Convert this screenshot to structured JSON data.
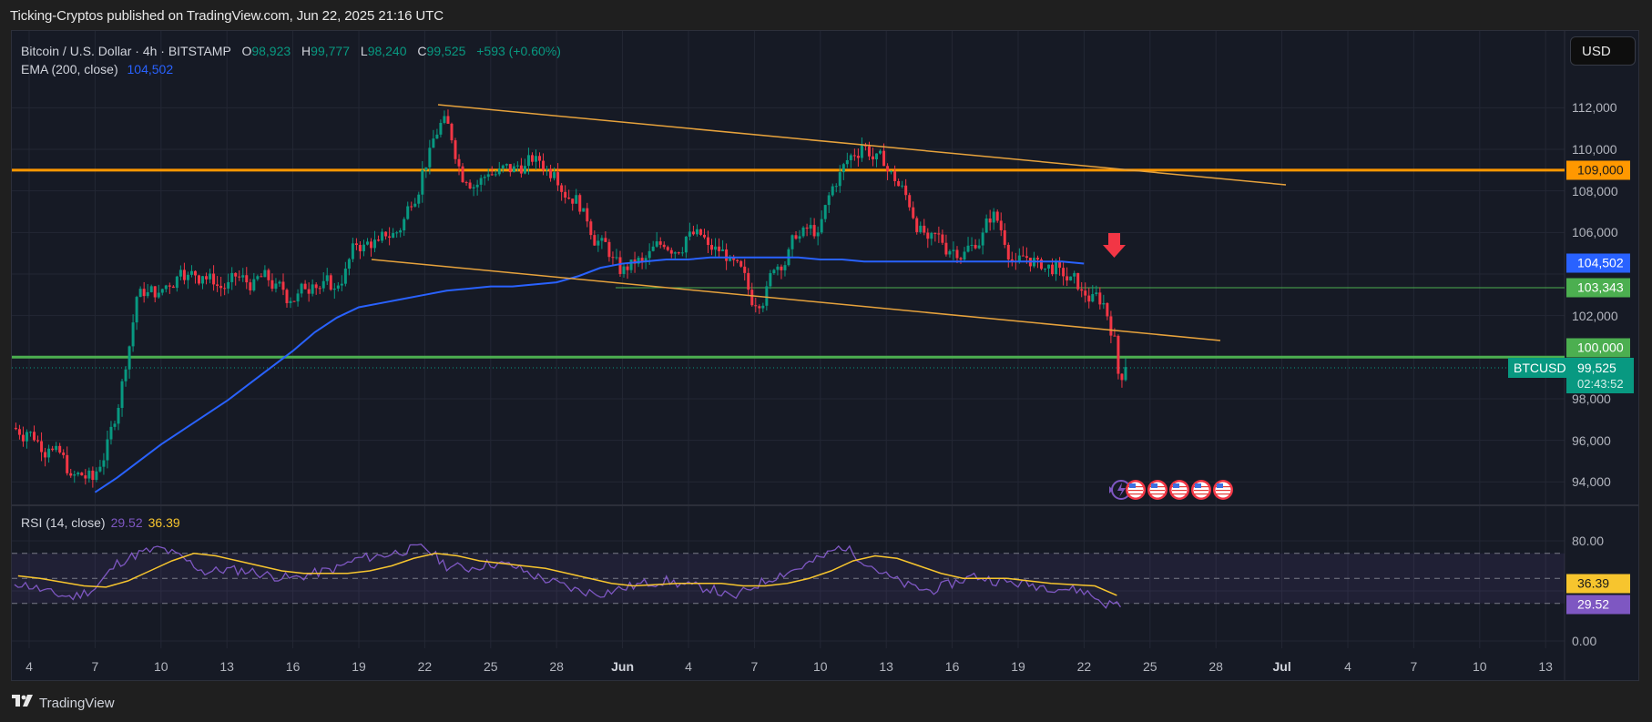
{
  "publication": {
    "text": "Ticking-Cryptos published on TradingView.com, Jun 22, 2025 21:16 UTC"
  },
  "legend": {
    "symbol": "Bitcoin / U.S. Dollar · 4h · BITSTAMP",
    "open_label": "O",
    "open": "98,923",
    "high_label": "H",
    "high": "99,777",
    "low_label": "L",
    "low": "98,240",
    "close_label": "C",
    "close": "99,525",
    "change": "+593 (+0.60%)",
    "ema_label": "EMA (200, close)",
    "ema_value": "104,502"
  },
  "rsi_legend": {
    "label": "RSI (14, close)",
    "rsi_value": "29.52",
    "ma_value": "36.39"
  },
  "currency_button": "USD",
  "price_scale": {
    "ticks": [
      "112,000",
      "110,000",
      "108,000",
      "106,000",
      "102,000",
      "98,000",
      "96,000",
      "94,000"
    ],
    "tags": {
      "resistance": {
        "label": "109,000",
        "color": "#ff9800"
      },
      "ema": {
        "label": "104,502",
        "color": "#2962ff"
      },
      "support_thin": {
        "label": "103,343",
        "color": "#4caf50"
      },
      "support": {
        "label": "100,000",
        "color": "#4caf50"
      },
      "last": {
        "label": "99,525",
        "countdown": "02:43:52",
        "color": "#089981"
      }
    },
    "symbol_tag": "BTCUSD"
  },
  "rsi_scale": {
    "ticks": [
      "80.00",
      "0.00"
    ],
    "tags": {
      "ma": {
        "label": "36.39",
        "color": "#f7c52e"
      },
      "rsi": {
        "label": "29.52",
        "color": "#7e57c2"
      }
    }
  },
  "time_axis": {
    "labels": [
      "4",
      "7",
      "10",
      "13",
      "16",
      "19",
      "22",
      "25",
      "28",
      "Jun",
      "4",
      "7",
      "10",
      "13",
      "16",
      "19",
      "22",
      "25",
      "28",
      "Jul",
      "4",
      "7",
      "10",
      "13"
    ]
  },
  "branding": {
    "logo_text": "TradingView"
  },
  "colors": {
    "background": "#161a25",
    "grid": "#232734",
    "up": "#089981",
    "down": "#f23645",
    "ema": "#2962ff",
    "resistance": "#ff9800",
    "support": "#4caf50",
    "trendline": "#e6a23c",
    "rsi": "#7e57c2",
    "rsi_ma": "#f7c52e",
    "arrow": "#f23645"
  },
  "chart_data": {
    "type": "candlestick",
    "title": "Bitcoin / U.S. Dollar · 4h · BITSTAMP",
    "interval": "4h",
    "x_range": [
      "May 3, 2025",
      "Jun 23, 2025"
    ],
    "ylabel": "USD",
    "ylim": [
      92800,
      114800
    ],
    "ohlc_last": {
      "open": 98923,
      "high": 99777,
      "low": 98240,
      "close": 99525,
      "change": 593,
      "change_pct": 0.6
    },
    "price_path_daily": {
      "dates": [
        "May 3",
        "May 4",
        "May 5",
        "May 6",
        "May 7",
        "May 8",
        "May 9",
        "May 10",
        "May 11",
        "May 12",
        "May 13",
        "May 14",
        "May 15",
        "May 16",
        "May 17",
        "May 18",
        "May 19",
        "May 20",
        "May 21",
        "May 22",
        "May 23",
        "May 24",
        "May 25",
        "May 26",
        "May 27",
        "May 28",
        "May 29",
        "May 30",
        "May 31",
        "Jun 1",
        "Jun 2",
        "Jun 3",
        "Jun 4",
        "Jun 5",
        "Jun 6",
        "Jun 7",
        "Jun 8",
        "Jun 9",
        "Jun 10",
        "Jun 11",
        "Jun 12",
        "Jun 13",
        "Jun 14",
        "Jun 15",
        "Jun 16",
        "Jun 17",
        "Jun 18",
        "Jun 19",
        "Jun 20",
        "Jun 21",
        "Jun 22"
      ],
      "close": [
        96400,
        95600,
        94300,
        94100,
        96800,
        102900,
        103100,
        104200,
        103900,
        103300,
        103600,
        103700,
        102700,
        103500,
        103300,
        105400,
        105600,
        106100,
        109000,
        111600,
        108400,
        108800,
        108900,
        109400,
        108900,
        107800,
        105600,
        104000,
        104600,
        105300,
        105800,
        105400,
        104800,
        102500,
        104200,
        105700,
        106000,
        108900,
        110200,
        109200,
        107800,
        105700,
        105100,
        105400,
        107000,
        104600,
        104700,
        104300,
        103200,
        102600,
        99525
      ]
    },
    "ema200": {
      "start": [
        93500,
        "May 7"
      ],
      "end": [
        104502,
        "Jun 22"
      ],
      "values_daily_from_May7": [
        93500,
        94200,
        95000,
        95800,
        96500,
        97200,
        97900,
        98700,
        99500,
        100300,
        101200,
        101900,
        102400,
        102600,
        102800,
        103000,
        103200,
        103300,
        103400,
        103400,
        103500,
        103600,
        103900,
        104300,
        104500,
        104600,
        104700,
        104700,
        104800,
        104800,
        104800,
        104800,
        104800,
        104700,
        104700,
        104600,
        104600,
        104600,
        104600,
        104600,
        104600,
        104600,
        104600,
        104600,
        104600,
        104502
      ]
    },
    "horizontal_levels": [
      {
        "price": 109000,
        "label": "109,000",
        "color": "#ff9800",
        "style": "thick"
      },
      {
        "price": 103343,
        "label": "103,343",
        "color": "#4caf50",
        "style": "thin",
        "from": "May 31"
      },
      {
        "price": 100000,
        "label": "100,000",
        "color": "#4caf50",
        "style": "thick"
      }
    ],
    "trendlines": [
      {
        "name": "upper",
        "from": [
          "May 22",
          112200
        ],
        "to": [
          "Jun 27",
          108300
        ]
      },
      {
        "name": "lower",
        "from": [
          "May 19",
          104800
        ],
        "to": [
          "Jun 27",
          100800
        ]
      }
    ],
    "annotations": [
      {
        "type": "arrow-down",
        "at": [
          "Jun 22",
          105600
        ],
        "color": "#f23645"
      },
      {
        "type": "events",
        "at": "Jun 22",
        "items": [
          "earnings-bolt",
          "us-flag",
          "us-flag",
          "us-flag",
          "us-flag",
          "us-flag"
        ]
      }
    ],
    "rsi": {
      "period": 14,
      "ylim": [
        0,
        100
      ],
      "bands": [
        70,
        50,
        30
      ],
      "last_rsi": 29.52,
      "last_ma": 36.39,
      "daily_rsi": [
        48,
        44,
        38,
        35,
        42,
        62,
        70,
        74,
        66,
        55,
        57,
        56,
        52,
        50,
        54,
        58,
        66,
        68,
        72,
        75,
        60,
        58,
        62,
        60,
        52,
        46,
        40,
        38,
        42,
        46,
        48,
        44,
        42,
        34,
        44,
        52,
        58,
        66,
        76,
        64,
        52,
        44,
        40,
        46,
        52,
        48,
        46,
        44,
        42,
        40,
        29.5
      ],
      "daily_ma": [
        52,
        50,
        47,
        44,
        43,
        48,
        56,
        64,
        70,
        68,
        64,
        60,
        56,
        54,
        54,
        54,
        56,
        60,
        66,
        70,
        68,
        64,
        62,
        60,
        58,
        54,
        50,
        46,
        44,
        45,
        46,
        46,
        46,
        44,
        44,
        46,
        50,
        56,
        64,
        68,
        66,
        60,
        54,
        50,
        50,
        50,
        48,
        46,
        45,
        44,
        36.4
      ]
    }
  }
}
